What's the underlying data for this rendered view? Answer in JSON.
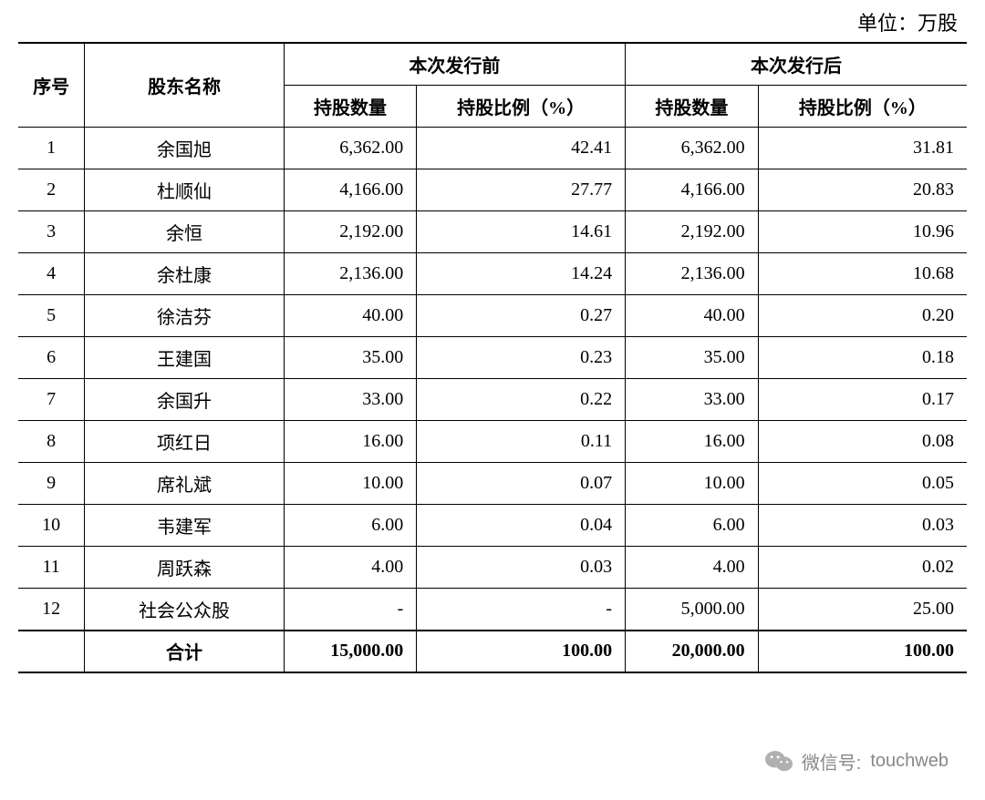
{
  "unit_label": "单位：万股",
  "table": {
    "type": "table",
    "columns": {
      "seq": "序号",
      "name": "股东名称",
      "group_before": "本次发行前",
      "group_after": "本次发行后",
      "qty": "持股数量",
      "pct": "持股比例（%）"
    },
    "rows": [
      {
        "seq": "1",
        "name": "余国旭",
        "before_qty": "6,362.00",
        "before_pct": "42.41",
        "after_qty": "6,362.00",
        "after_pct": "31.81"
      },
      {
        "seq": "2",
        "name": "杜顺仙",
        "before_qty": "4,166.00",
        "before_pct": "27.77",
        "after_qty": "4,166.00",
        "after_pct": "20.83"
      },
      {
        "seq": "3",
        "name": "余恒",
        "before_qty": "2,192.00",
        "before_pct": "14.61",
        "after_qty": "2,192.00",
        "after_pct": "10.96"
      },
      {
        "seq": "4",
        "name": "余杜康",
        "before_qty": "2,136.00",
        "before_pct": "14.24",
        "after_qty": "2,136.00",
        "after_pct": "10.68"
      },
      {
        "seq": "5",
        "name": "徐洁芬",
        "before_qty": "40.00",
        "before_pct": "0.27",
        "after_qty": "40.00",
        "after_pct": "0.20"
      },
      {
        "seq": "6",
        "name": "王建国",
        "before_qty": "35.00",
        "before_pct": "0.23",
        "after_qty": "35.00",
        "after_pct": "0.18"
      },
      {
        "seq": "7",
        "name": "余国升",
        "before_qty": "33.00",
        "before_pct": "0.22",
        "after_qty": "33.00",
        "after_pct": "0.17"
      },
      {
        "seq": "8",
        "name": "项红日",
        "before_qty": "16.00",
        "before_pct": "0.11",
        "after_qty": "16.00",
        "after_pct": "0.08"
      },
      {
        "seq": "9",
        "name": "席礼斌",
        "before_qty": "10.00",
        "before_pct": "0.07",
        "after_qty": "10.00",
        "after_pct": "0.05"
      },
      {
        "seq": "10",
        "name": "韦建军",
        "before_qty": "6.00",
        "before_pct": "0.04",
        "after_qty": "6.00",
        "after_pct": "0.03"
      },
      {
        "seq": "11",
        "name": "周跃森",
        "before_qty": "4.00",
        "before_pct": "0.03",
        "after_qty": "4.00",
        "after_pct": "0.02"
      },
      {
        "seq": "12",
        "name": "社会公众股",
        "before_qty": "-",
        "before_pct": "-",
        "after_qty": "5,000.00",
        "after_pct": "25.00"
      }
    ],
    "total": {
      "seq": "",
      "name": "合计",
      "before_qty": "15,000.00",
      "before_pct": "100.00",
      "after_qty": "20,000.00",
      "after_pct": "100.00"
    },
    "font_size": 20,
    "border_color": "#000000",
    "background_color": "#ffffff",
    "text_color": "#000000"
  },
  "footer": {
    "label": "微信号:",
    "account": "touchweb",
    "text_color": "#888888",
    "icon_color": "#b0b0b0"
  }
}
